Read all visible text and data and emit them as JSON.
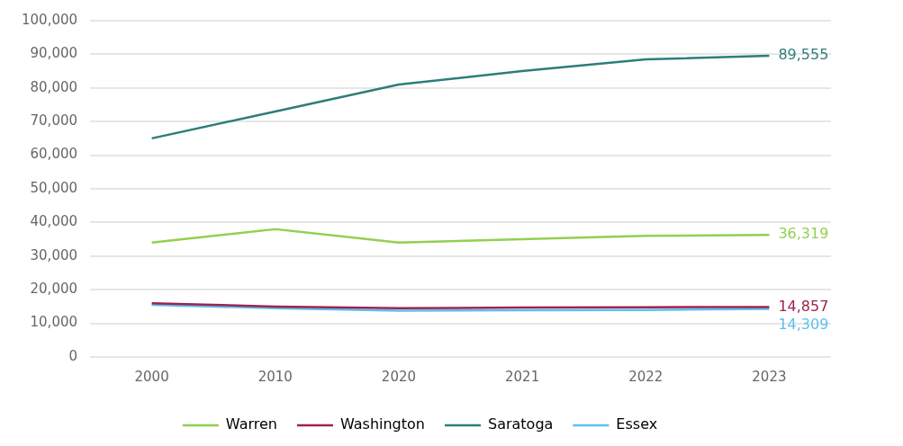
{
  "chart_data": {
    "type": "line",
    "categories": [
      "2000",
      "2010",
      "2020",
      "2021",
      "2022",
      "2023"
    ],
    "series": [
      {
        "name": "Warren",
        "color": "#92d050",
        "values": [
          34000,
          38000,
          34000,
          35000,
          36000,
          36319
        ],
        "value_labels": [
          null,
          null,
          null,
          null,
          null,
          "36,319"
        ]
      },
      {
        "name": "Washington",
        "color": "#a0224f",
        "values": [
          16000,
          15000,
          14500,
          14700,
          14800,
          14857
        ],
        "value_labels": [
          null,
          null,
          null,
          null,
          null,
          "14,857"
        ]
      },
      {
        "name": "Saratoga",
        "color": "#2e7d7a",
        "values": [
          65000,
          73000,
          81000,
          85000,
          88500,
          89555
        ],
        "value_labels": [
          null,
          null,
          null,
          null,
          null,
          "89,555"
        ]
      },
      {
        "name": "Essex",
        "color": "#5bc0f0",
        "values": [
          15500,
          14500,
          13800,
          13900,
          14000,
          14309
        ],
        "value_labels": [
          null,
          null,
          null,
          null,
          null,
          "14,309"
        ]
      }
    ],
    "ylim": [
      0,
      100000
    ],
    "yticks": [
      0,
      {
        "value": 10000,
        "label": "10,000"
      },
      {
        "value": 20000,
        "label": "20,000"
      },
      {
        "value": 30000,
        "label": "30,000"
      },
      {
        "value": 40000,
        "label": "40,000"
      },
      {
        "value": 50000,
        "label": "50,000"
      },
      {
        "value": 60000,
        "label": "60,000"
      },
      {
        "value": 70000,
        "label": "70,000"
      },
      {
        "value": 80000,
        "label": "80,000"
      },
      {
        "value": 90000,
        "label": "90,000"
      },
      {
        "value": 100000,
        "label": "100,000"
      }
    ],
    "grid": "y",
    "legend": "bottom",
    "marker": "none",
    "line_style": "solid"
  }
}
